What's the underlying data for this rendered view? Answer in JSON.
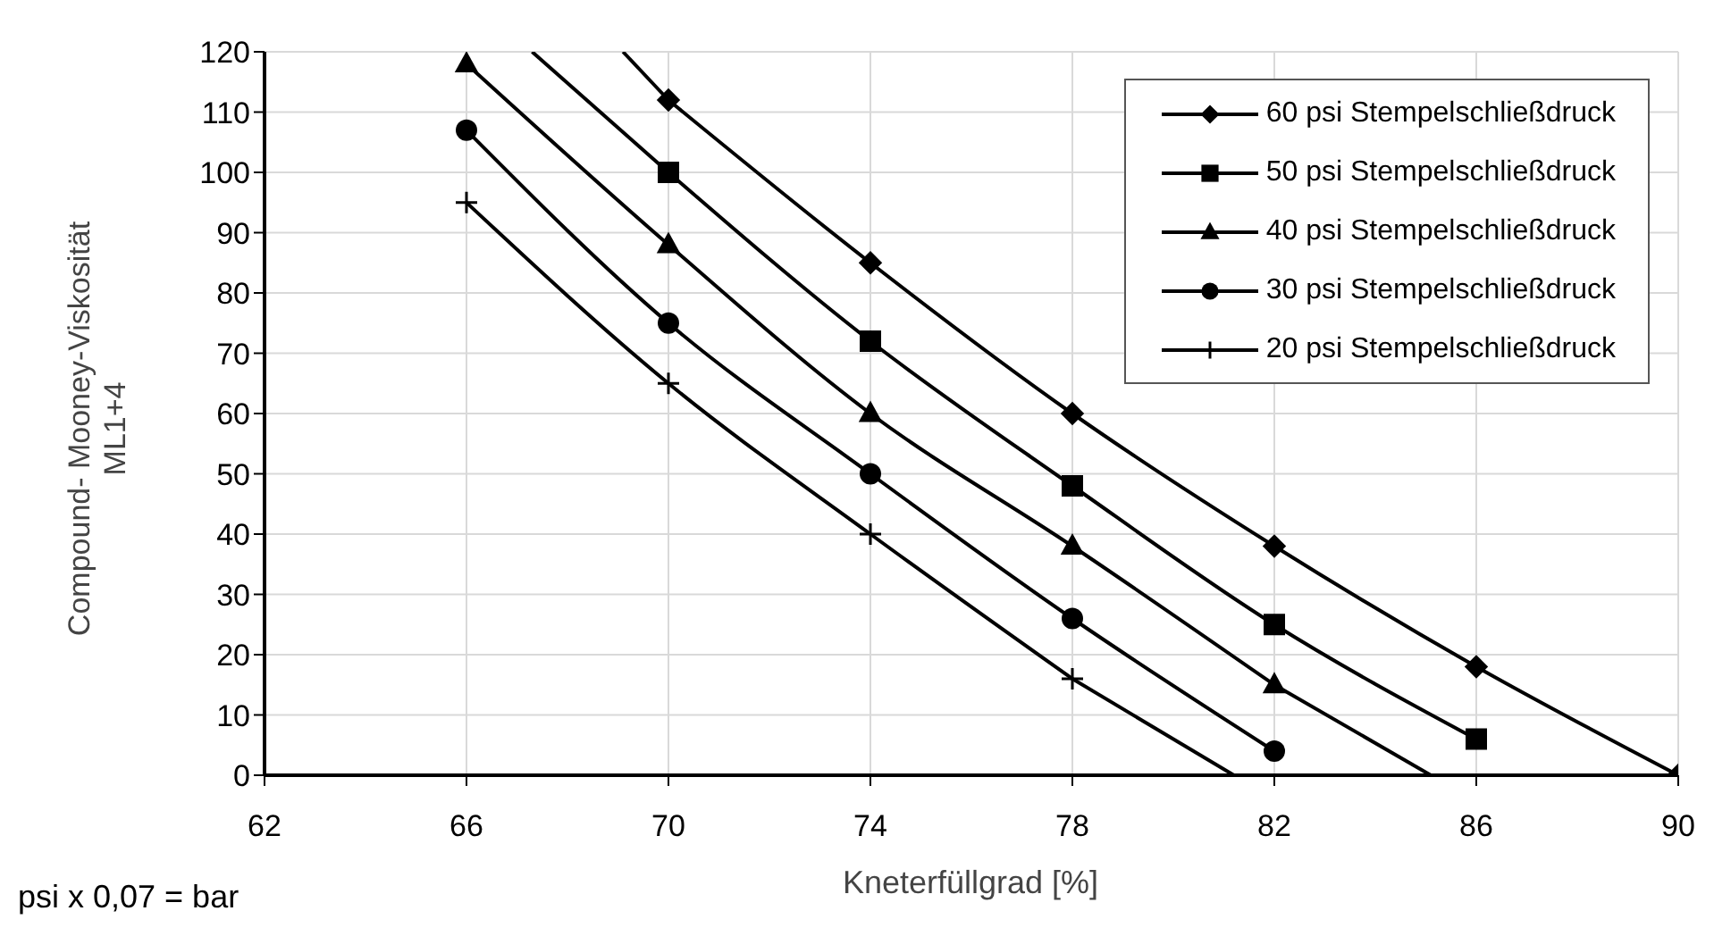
{
  "chart_data": {
    "type": "line",
    "xlabel": "Kneterfüllgrad [%]",
    "ylabel": "Compound- Mooney-Viskosität\nML1+4",
    "xlim": [
      62,
      90
    ],
    "xticks": [
      62,
      66,
      70,
      74,
      78,
      82,
      86,
      90
    ],
    "ylim": [
      0,
      120
    ],
    "yticks": [
      0,
      10,
      20,
      30,
      40,
      50,
      60,
      70,
      80,
      90,
      100,
      110,
      120
    ],
    "grid": true,
    "legend": "top right",
    "line_style": "solid",
    "series": [
      {
        "name": "60 psi Stempelschließdruck",
        "color": "#000000",
        "marker": "diamond",
        "x": [
          70,
          74,
          78,
          82,
          86,
          90
        ],
        "values": [
          112,
          85,
          60,
          38,
          18,
          0
        ]
      },
      {
        "name": "50 psi Stempelschließdruck",
        "color": "#000000",
        "marker": "square",
        "x": [
          70,
          74,
          78,
          82,
          86
        ],
        "values": [
          100,
          72,
          48,
          25,
          6
        ]
      },
      {
        "name": "40 psi Stempelschließdruck",
        "color": "#000000",
        "marker": "triangle",
        "x": [
          66,
          70,
          74,
          78,
          82
        ],
        "values": [
          118,
          88,
          60,
          38,
          15
        ]
      },
      {
        "name": "30 psi Stempelschließdruck",
        "color": "#000000",
        "marker": "circle",
        "x": [
          66,
          70,
          74,
          78,
          82
        ],
        "values": [
          107,
          75,
          50,
          26,
          4
        ]
      },
      {
        "name": "20 psi Stempelschließdruck",
        "color": "#000000",
        "marker": "cross",
        "x": [
          66,
          70,
          74,
          78
        ],
        "values": [
          95,
          65,
          40,
          16
        ]
      },
      {
        "color": "#000000",
        "marker": "none",
        "x": [
          69.1,
          70
        ],
        "values": [
          120,
          112
        ]
      },
      {
        "color": "#000000",
        "marker": "none",
        "x": [
          67.3,
          70
        ],
        "values": [
          120,
          100
        ]
      },
      {
        "color": "#000000",
        "marker": "none",
        "x": [
          82,
          85.1
        ],
        "values": [
          15,
          0
        ]
      },
      {
        "color": "#000000",
        "marker": "none",
        "x": [
          78,
          81.2
        ],
        "values": [
          16,
          0
        ]
      }
    ],
    "annotations": [
      "psi x 0,07 = bar"
    ]
  }
}
